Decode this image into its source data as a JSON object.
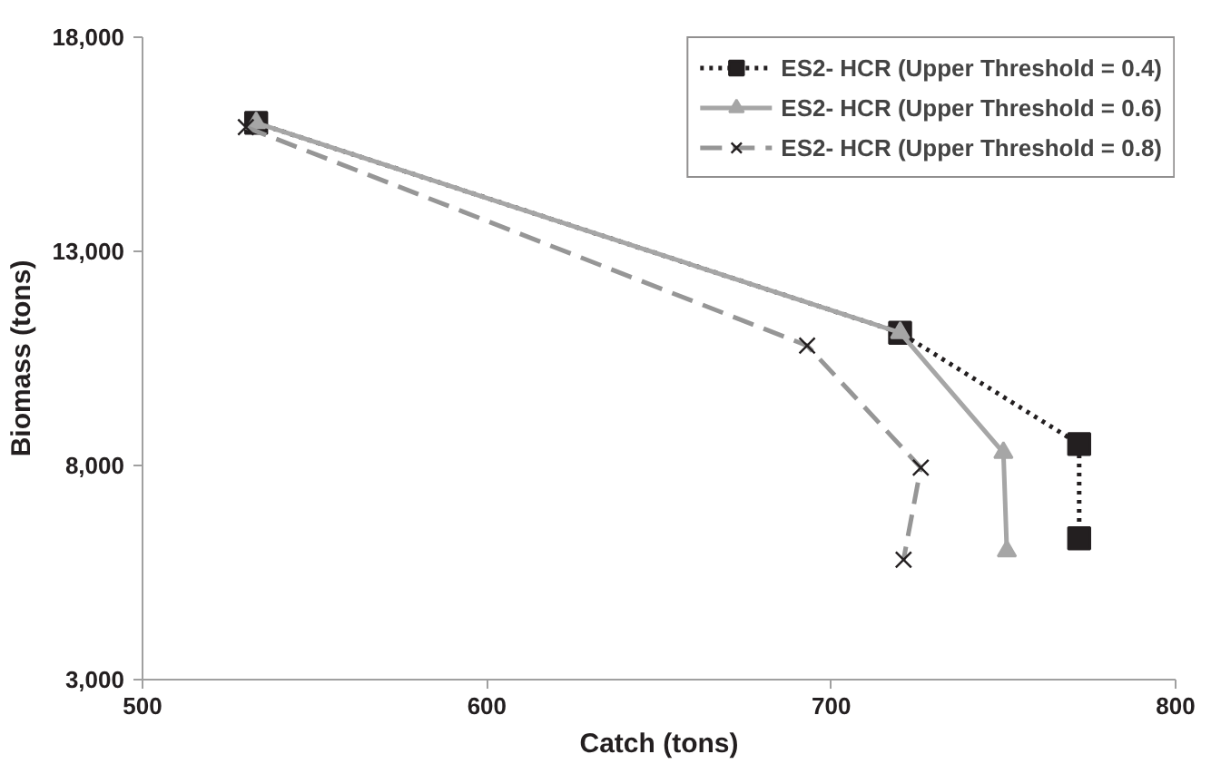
{
  "chart_data": {
    "type": "line",
    "xlabel": "Catch (tons)",
    "ylabel": "Biomass (tons)",
    "xlim": [
      500,
      800
    ],
    "xticks": [
      500,
      600,
      700,
      800
    ],
    "ylim": [
      3000,
      18000
    ],
    "yticks": [
      {
        "value": 3000,
        "label": "3,000"
      },
      {
        "value": 8000,
        "label": "8,000"
      },
      {
        "value": 13000,
        "label": "13,000"
      },
      {
        "value": 18000,
        "label": "18,000"
      }
    ],
    "grid": false,
    "legend": "top right",
    "series": [
      {
        "name": "ES2- HCR (Upper Threshold = 0.4)",
        "color": "#231f20",
        "marker": "square",
        "line_style": "dotted",
        "x": [
          533,
          720,
          772,
          772
        ],
        "values": [
          16000,
          11100,
          8500,
          6300
        ]
      },
      {
        "name": "ES2- HCR (Upper Threshold = 0.6)",
        "color": "#a6a6a6",
        "marker": "triangle",
        "line_style": "solid",
        "x": [
          533,
          720,
          750,
          751
        ],
        "values": [
          16000,
          11100,
          8300,
          6000
        ]
      },
      {
        "name": "ES2- HCR (Upper Threshold = 0.8)",
        "color": "#969696",
        "marker": "cross",
        "line_style": "dashed",
        "x": [
          530,
          693,
          726,
          721
        ],
        "values": [
          15900,
          10800,
          7950,
          5800
        ]
      }
    ]
  }
}
